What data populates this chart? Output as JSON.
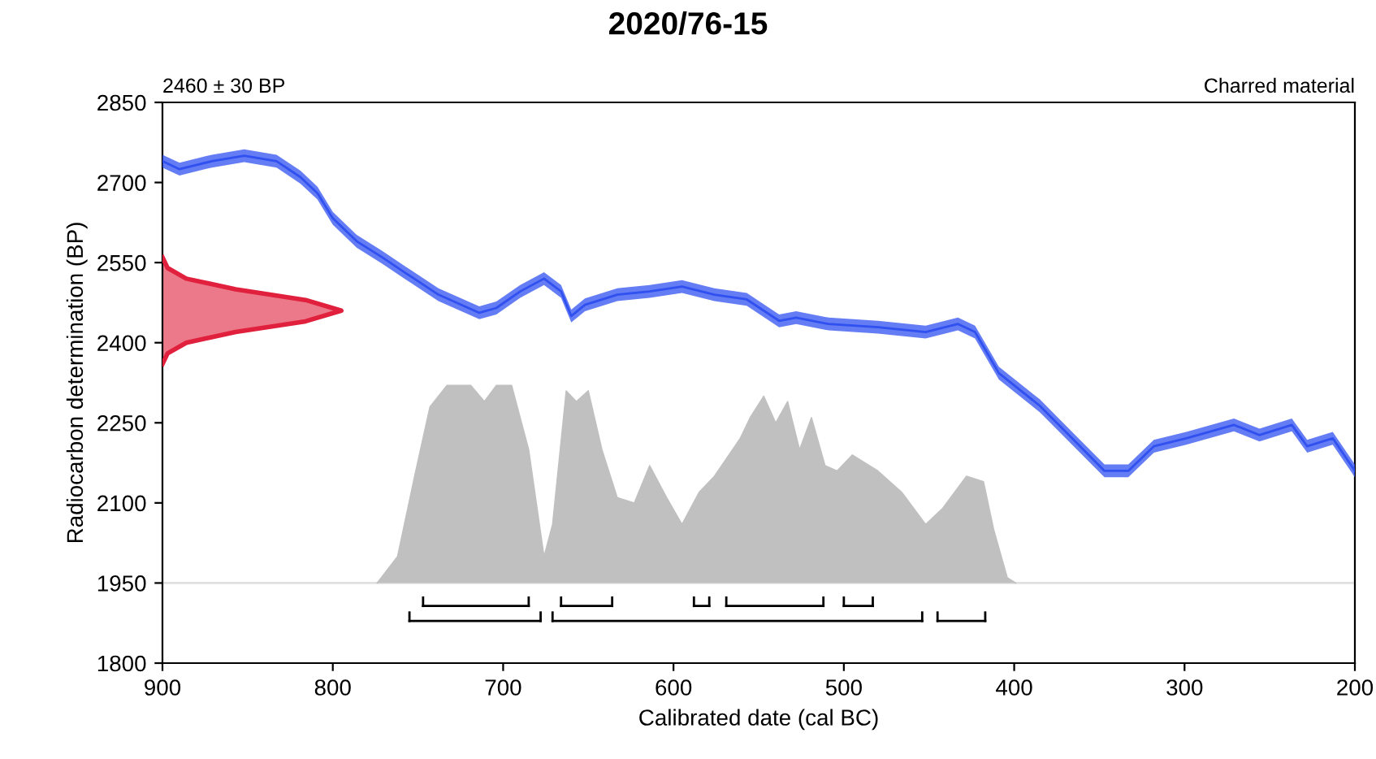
{
  "chart_data": {
    "type": "line",
    "title": "2020/76-15",
    "xlabel": "Calibrated date (cal BC)",
    "ylabel": "Radiocarbon determination (BP)",
    "annotations": [
      "2460 ± 30 BP",
      "Charred material"
    ],
    "xlim": [
      900,
      200
    ],
    "xticks": [
      900,
      800,
      700,
      600,
      500,
      400,
      300,
      200
    ],
    "ylim": [
      1800,
      2850
    ],
    "yticks": [
      1800,
      1950,
      2100,
      2250,
      2400,
      2550,
      2700,
      2850
    ],
    "grid": false,
    "legend": false,
    "ref_lines": [
      {
        "axis": "y",
        "value": 1950,
        "color": "#e0e0e0"
      }
    ],
    "series": [
      {
        "type": "area",
        "color": "#c0c0c0",
        "x": [
          774,
          762,
          752,
          743,
          733,
          719,
          711,
          704,
          695,
          685,
          676,
          671,
          663,
          657,
          650,
          642,
          633,
          623,
          614,
          604,
          595,
          585,
          576,
          561,
          555,
          547,
          540,
          533,
          526,
          519,
          511,
          504,
          495,
          480,
          466,
          452,
          442,
          428,
          418,
          412,
          404,
          399
        ],
        "values": [
          1950,
          2000,
          2150,
          2280,
          2320,
          2320,
          2290,
          2320,
          2320,
          2200,
          2000,
          2060,
          2310,
          2290,
          2310,
          2200,
          2110,
          2100,
          2170,
          2110,
          2060,
          2120,
          2150,
          2220,
          2260,
          2300,
          2250,
          2290,
          2200,
          2260,
          2170,
          2160,
          2190,
          2160,
          2120,
          2060,
          2090,
          2150,
          2140,
          2050,
          1960,
          1950
        ]
      },
      {
        "type": "area",
        "color": "#e0203c",
        "x": [
          900,
          897,
          886,
          857,
          816,
          795,
          816,
          857,
          886,
          897,
          900
        ],
        "values": [
          2360,
          2380,
          2400,
          2420,
          2440,
          2460,
          2480,
          2500,
          2520,
          2540,
          2560
        ]
      },
      {
        "color": "#3050f0",
        "x": [
          900,
          890,
          871,
          852,
          833,
          819,
          809,
          800,
          786,
          771,
          757,
          738,
          714,
          704,
          690,
          676,
          666,
          660,
          652,
          633,
          614,
          595,
          576,
          557,
          538,
          528,
          509,
          480,
          452,
          433,
          423,
          409,
          385,
          366,
          347,
          333,
          318,
          299,
          271,
          256,
          237,
          228,
          213,
          200
        ],
        "values": [
          2740,
          2725,
          2740,
          2750,
          2740,
          2710,
          2680,
          2633,
          2590,
          2560,
          2530,
          2490,
          2456,
          2465,
          2496,
          2520,
          2496,
          2450,
          2471,
          2490,
          2496,
          2505,
          2490,
          2481,
          2441,
          2447,
          2435,
          2429,
          2420,
          2435,
          2420,
          2343,
          2282,
          2221,
          2160,
          2160,
          2206,
          2221,
          2246,
          2227,
          2246,
          2206,
          2221,
          2160
        ],
        "lower": [
          2728,
          2713,
          2728,
          2738,
          2728,
          2698,
          2668,
          2621,
          2578,
          2548,
          2518,
          2478,
          2444,
          2453,
          2484,
          2508,
          2484,
          2438,
          2459,
          2478,
          2484,
          2493,
          2478,
          2469,
          2429,
          2435,
          2423,
          2417,
          2408,
          2423,
          2408,
          2331,
          2270,
          2209,
          2148,
          2148,
          2194,
          2209,
          2234,
          2215,
          2234,
          2194,
          2209,
          2148
        ],
        "upper": [
          2752,
          2737,
          2752,
          2762,
          2752,
          2722,
          2692,
          2645,
          2602,
          2572,
          2542,
          2502,
          2468,
          2477,
          2508,
          2532,
          2508,
          2462,
          2483,
          2502,
          2508,
          2517,
          2502,
          2493,
          2453,
          2459,
          2447,
          2441,
          2432,
          2447,
          2432,
          2355,
          2294,
          2233,
          2172,
          2172,
          2218,
          2233,
          2258,
          2239,
          2258,
          2218,
          2233,
          2172
        ]
      },
      {
        "type": "line",
        "color": "#000000",
        "x": [
          747,
          685,
          null,
          666,
          636,
          null,
          588,
          579,
          null,
          569,
          512,
          null,
          500,
          483
        ],
        "values": [
          1907,
          1907,
          null,
          1907,
          1907,
          null,
          1907,
          1907,
          null,
          1907,
          1907,
          null,
          1907,
          1907
        ]
      },
      {
        "type": "line",
        "color": "#000000",
        "x": [
          755,
          678,
          null,
          671,
          454,
          null,
          445,
          417
        ],
        "values": [
          1879,
          1879,
          null,
          1879,
          1879,
          null,
          1879,
          1879
        ]
      }
    ]
  }
}
